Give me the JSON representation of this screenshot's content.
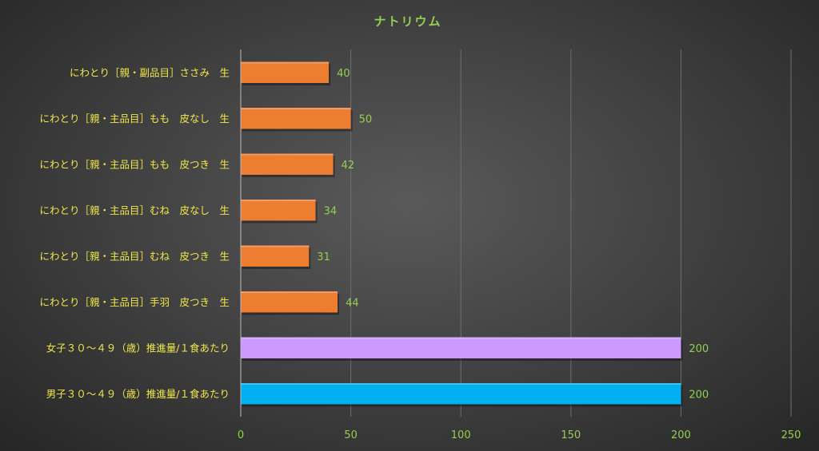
{
  "chart_data": {
    "type": "bar",
    "orientation": "horizontal",
    "title": "ナトリウム",
    "categories": [
      "にわとり［親・副品目］ささみ　生",
      "にわとり［親・主品目］もも　皮なし　生",
      "にわとり［親・主品目］もも　皮つき　生",
      "にわとり［親・主品目］むね　皮なし　生",
      "にわとり［親・主品目］むね　皮つき　生",
      "にわとり［親・主品目］手羽　皮つき　生",
      "女子３０～４９（歳）推進量/１食あたり",
      "男子３０～４９（歳）推進量/１食あたり"
    ],
    "values": [
      40,
      50,
      42,
      34,
      31,
      44,
      200,
      200
    ],
    "data_labels": [
      "40",
      "50",
      "42",
      "34",
      "31",
      "44",
      "200",
      "200"
    ],
    "bar_colors": [
      "#ed7d31",
      "#ed7d31",
      "#ed7d31",
      "#ed7d31",
      "#ed7d31",
      "#ed7d31",
      "#cc99ff",
      "#00b0f0"
    ],
    "xlim": [
      0,
      250
    ],
    "xticks": [
      0,
      50,
      100,
      150,
      200,
      250
    ],
    "xtick_labels": [
      "0",
      "50",
      "100",
      "150",
      "200",
      "250"
    ],
    "grid": true,
    "legend": "none",
    "colors": {
      "title": "#92d050",
      "category_text": "#f2e84b",
      "value_text": "#92d050"
    }
  }
}
